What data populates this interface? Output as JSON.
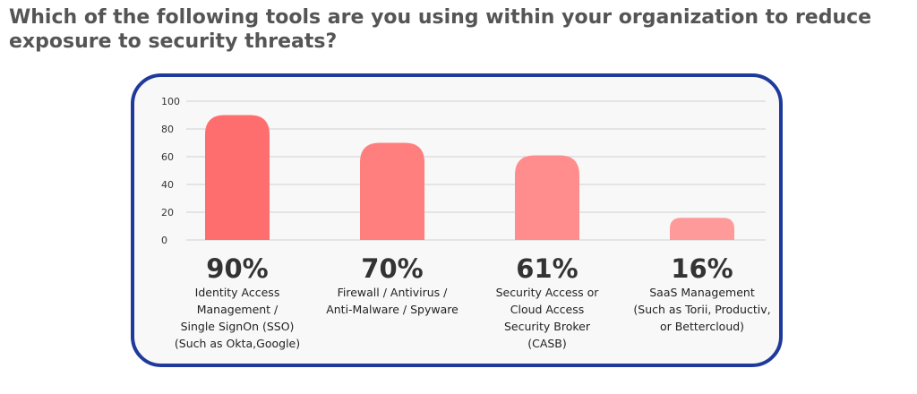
{
  "question": "Which of the following tools are you using within your organization to reduce exposure to security threats?",
  "colors": {
    "frame": "#1e3a9a",
    "bars": [
      "#ff6e6e",
      "#ff7f7f",
      "#ff8d8d",
      "#ff9a9a"
    ]
  },
  "chart_data": {
    "type": "bar",
    "categories": [
      "Identity Access\nManagement /\nSingle SignOn (SSO)\n(Such as Okta,Google)",
      "Firewall / Antivirus /\nAnti-Malware / Spyware",
      "Security Access or\nCloud Access\nSecurity Broker\n(CASB)",
      "SaaS Management\n(Such as Torii, Productiv,\nor Bettercloud)"
    ],
    "values": [
      90,
      70,
      61,
      16
    ],
    "data_labels": [
      "90%",
      "70%",
      "61%",
      "16%"
    ],
    "ylim": [
      0,
      100
    ],
    "yticks": [
      0,
      20,
      40,
      60,
      80,
      100
    ],
    "grid": true,
    "legend": "none"
  }
}
